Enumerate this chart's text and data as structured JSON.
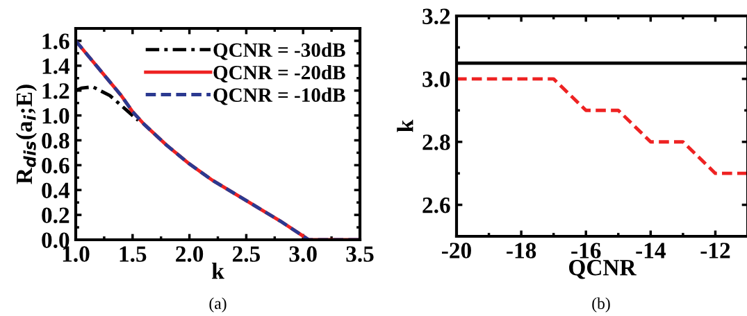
{
  "chart_data": [
    {
      "type": "line",
      "title": "(a)",
      "xlabel": "k",
      "ylabel": "R$_{dis}$(a$_{i}$;E)",
      "xlim": [
        1.0,
        3.5
      ],
      "xticks": [
        {
          "value": 1.0,
          "label": "1.0"
        },
        {
          "value": 1.5,
          "label": "1.5"
        },
        {
          "value": 2.0,
          "label": "2.0"
        },
        {
          "value": 2.5,
          "label": "2.5"
        },
        {
          "value": 3.0,
          "label": "3.0"
        },
        {
          "value": 3.5,
          "label": "3.5"
        }
      ],
      "ylim": [
        0.0,
        1.7
      ],
      "yticks": [
        {
          "value": 0.0,
          "label": "0.0"
        },
        {
          "value": 0.2,
          "label": "0.2"
        },
        {
          "value": 0.4,
          "label": "0.4"
        },
        {
          "value": 0.6,
          "label": "0.6"
        },
        {
          "value": 0.8,
          "label": "0.8"
        },
        {
          "value": 1.0,
          "label": "1.0"
        },
        {
          "value": 1.2,
          "label": "1.2"
        },
        {
          "value": 1.4,
          "label": "1.4"
        },
        {
          "value": 1.6,
          "label": "1.6"
        }
      ],
      "grid": false,
      "legend": "top right",
      "series": [
        {
          "name": "QCNR = -30dB",
          "color": "#000000",
          "line_style": "dashdot",
          "x": [
            1.0,
            1.05,
            1.15,
            1.3,
            1.45,
            1.55
          ],
          "values": [
            1.2,
            1.22,
            1.23,
            1.16,
            1.04,
            0.96
          ]
        },
        {
          "name": "QCNR = -20dB",
          "color": "#ee2222",
          "line_style": "solid",
          "x": [
            1.0,
            1.1,
            1.2,
            1.3,
            1.4,
            1.5,
            1.6,
            1.8,
            2.0,
            2.2,
            2.4,
            2.6,
            2.8,
            3.0,
            3.05,
            3.5
          ],
          "values": [
            1.6,
            1.49,
            1.38,
            1.27,
            1.16,
            1.03,
            0.93,
            0.76,
            0.61,
            0.48,
            0.37,
            0.26,
            0.15,
            0.03,
            0.0,
            0.0
          ]
        },
        {
          "name": "QCNR = -10dB",
          "color": "#2b3990",
          "line_style": "dashed",
          "x": [
            1.0,
            1.1,
            1.2,
            1.3,
            1.4,
            1.5,
            1.6,
            1.8,
            2.0,
            2.2,
            2.4,
            2.6,
            2.8,
            3.0,
            3.05,
            3.5
          ],
          "values": [
            1.6,
            1.49,
            1.38,
            1.27,
            1.16,
            1.03,
            0.93,
            0.76,
            0.61,
            0.48,
            0.37,
            0.26,
            0.15,
            0.03,
            0.0,
            0.0
          ]
        }
      ]
    },
    {
      "type": "line",
      "title": "(b)",
      "xlabel": "QCNR",
      "ylabel": "k",
      "xlim": [
        -20,
        -11
      ],
      "xticks": [
        -20,
        -18,
        -16,
        -14,
        -12
      ],
      "ylim": [
        2.5,
        3.2
      ],
      "yticks": [
        {
          "value": 2.6,
          "label": "2.6"
        },
        {
          "value": 2.8,
          "label": "2.8"
        },
        {
          "value": 3.0,
          "label": "3.0"
        },
        {
          "value": 3.2,
          "label": "3.2"
        }
      ],
      "grid": false,
      "series": [
        {
          "color": "#000000",
          "line_style": "solid",
          "x": [
            -20,
            -11
          ],
          "values": [
            3.05,
            3.05
          ]
        },
        {
          "color": "#ee2222",
          "line_style": "dashed",
          "x": [
            -20,
            -17,
            -16,
            -15,
            -14,
            -13,
            -12,
            -11
          ],
          "values": [
            3.0,
            3.0,
            2.9,
            2.9,
            2.8,
            2.8,
            2.7,
            2.7
          ]
        }
      ]
    }
  ]
}
